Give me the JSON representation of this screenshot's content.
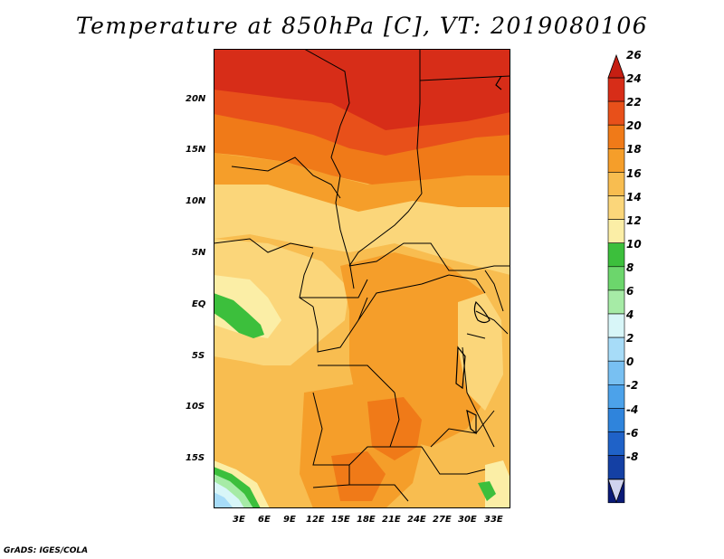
{
  "title": "Temperature at 850hPa [C], VT: 2019080106",
  "credit": "GrADS: IGES/COLA",
  "chart_data": {
    "type": "heatmap",
    "variable": "Temperature at 850hPa",
    "units": "C",
    "valid_time": "2019080106",
    "lat_range": [
      -19,
      25
    ],
    "lon_range": [
      0,
      35
    ],
    "lat_ticks": [
      "20N",
      "15N",
      "10N",
      "5N",
      "EQ",
      "5S",
      "10S",
      "15S"
    ],
    "lat_values": [
      20,
      15,
      10,
      5,
      0,
      -5,
      -10,
      -15
    ],
    "lon_ticks": [
      "3E",
      "6E",
      "9E",
      "12E",
      "15E",
      "18E",
      "21E",
      "24E",
      "27E",
      "30E",
      "33E"
    ],
    "lon_values": [
      3,
      6,
      9,
      12,
      15,
      18,
      21,
      24,
      27,
      30,
      33
    ],
    "colorbar": {
      "labels": [
        "26",
        "24",
        "22",
        "20",
        "18",
        "16",
        "14",
        "12",
        "10",
        "8",
        "6",
        "4",
        "2",
        "0",
        "-2",
        "-4",
        "-6",
        "-8"
      ],
      "values": [
        26,
        24,
        22,
        20,
        18,
        16,
        14,
        12,
        10,
        8,
        6,
        4,
        2,
        0,
        -2,
        -4,
        -6,
        -8
      ],
      "bin_colors": [
        "#d72d18",
        "#e8501a",
        "#f07a18",
        "#f59e2a",
        "#f8bd50",
        "#fbd67a",
        "#fbeea6",
        "#3cbf3c",
        "#6cd66c",
        "#a6eba6",
        "#d8f6f8",
        "#a7dcf8",
        "#78c0f2",
        "#4ca2ea",
        "#2f84dc",
        "#1f62c8",
        "#1440a4",
        "#0a1a78"
      ],
      "arrow_colors": {
        "top": "#c61e12",
        "bottom": "#cfd3ee"
      }
    }
  }
}
